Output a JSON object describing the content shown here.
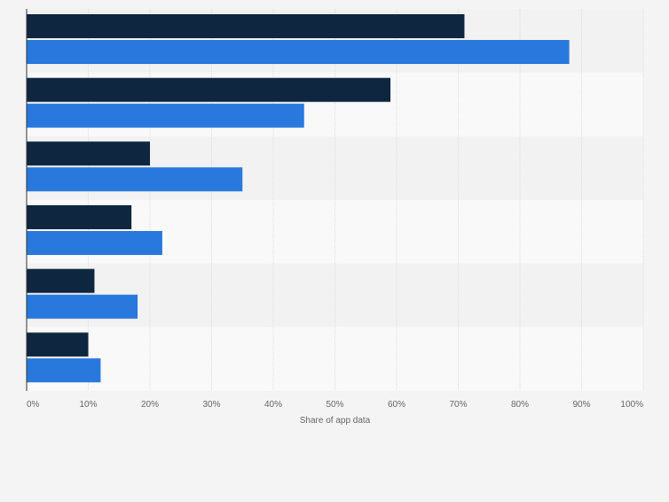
{
  "chart_data": {
    "type": "bar",
    "orientation": "horizontal",
    "categories": [
      "",
      "",
      "",
      "",
      "",
      ""
    ],
    "series": [
      {
        "values": [
          71,
          59,
          20,
          17,
          11,
          10
        ],
        "color": "#0f2640"
      },
      {
        "values": [
          88,
          45,
          35,
          22,
          18,
          12
        ],
        "color": "#2878de"
      }
    ],
    "x_ticks": [
      "0%",
      "10%",
      "20%",
      "30%",
      "40%",
      "50%",
      "60%",
      "70%",
      "80%",
      "90%",
      "100%"
    ],
    "xlabel": "Share of app data",
    "ylabel": "",
    "xlim": [
      0,
      100
    ],
    "grid": true,
    "legend": "none"
  },
  "colors": {
    "page_background": "#f4f4f4",
    "band_dark": "#f2f2f2",
    "band_light": "#f9f9f9",
    "grid": "#dedede",
    "axis": "#333333",
    "tick_label": "#666666"
  }
}
